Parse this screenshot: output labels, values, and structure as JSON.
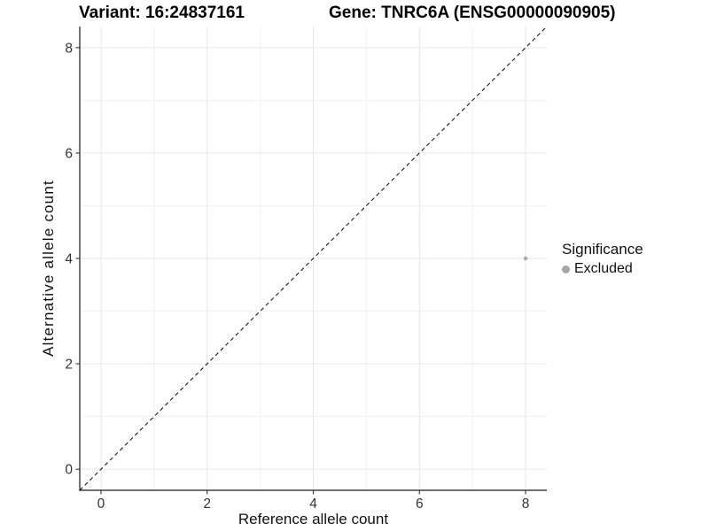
{
  "titles": {
    "variant": "Variant: 16:24837161",
    "gene": "Gene: TNRC6A (ENSG00000090905)"
  },
  "chart_data": {
    "type": "scatter",
    "title_left": "Variant: 16:24837161",
    "title_right": "Gene: TNRC6A (ENSG00000090905)",
    "xlabel": "Reference allele count",
    "ylabel": "Alternative allele count",
    "xlim": [
      -0.4,
      8.4
    ],
    "ylim": [
      -0.4,
      8.4
    ],
    "xticks": [
      0,
      2,
      4,
      6,
      8
    ],
    "yticks": [
      0,
      2,
      4,
      6,
      8
    ],
    "minor_xticks": [
      1,
      3,
      5,
      7
    ],
    "minor_yticks": [
      1,
      3,
      5,
      7
    ],
    "grid": "major+minor",
    "identity_line": {
      "style": "dashed",
      "from": [
        -0.4,
        -0.4
      ],
      "to": [
        8.4,
        8.4
      ],
      "color": "#1a1a1a"
    },
    "series": [
      {
        "name": "Excluded",
        "color": "#ababab",
        "points": [
          {
            "x": 8,
            "y": 4
          }
        ]
      }
    ],
    "legend": {
      "title": "Significance",
      "position": "right",
      "items": [
        {
          "label": "Excluded",
          "color": "#a6a6a6"
        }
      ]
    }
  },
  "theme": {
    "background": "#ffffff",
    "major_grid_color": "#e6e6e6",
    "minor_grid_color": "#f2f2f2",
    "axis_line_color": "#1a1a1a",
    "tick_color": "#333333",
    "tick_label_color": "#333333",
    "point_color": "#ababab"
  }
}
